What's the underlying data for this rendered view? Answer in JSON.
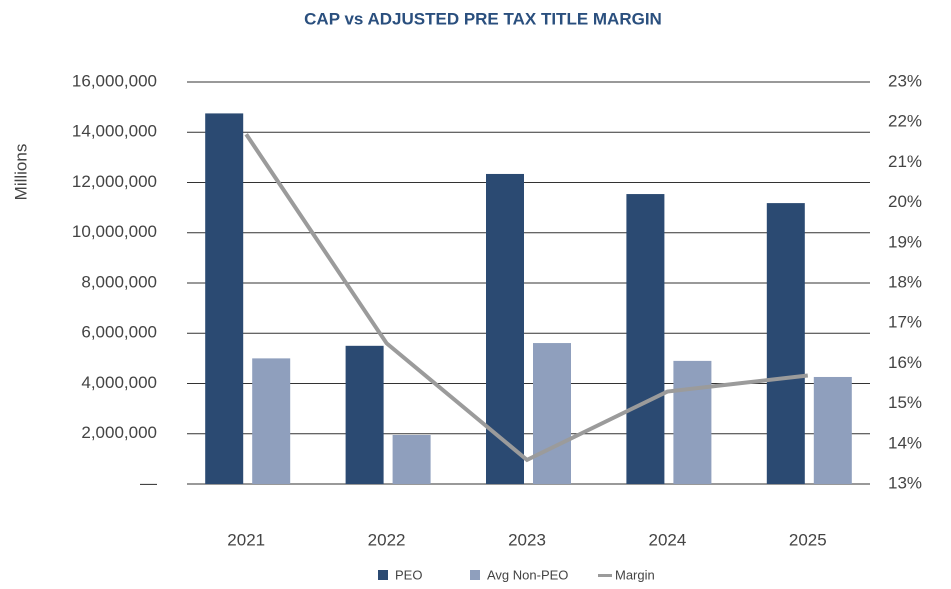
{
  "chart_data": {
    "type": "bar",
    "title": "CAP vs ADJUSTED PRE TAX TITLE MARGIN",
    "y_label": "Millions",
    "categories": [
      "2021",
      "2022",
      "2023",
      "2024",
      "2025"
    ],
    "series": [
      {
        "name": "PEO",
        "color": "#2b4a72",
        "values": [
          14750000,
          5500000,
          12340000,
          11540000,
          11180000
        ]
      },
      {
        "name": "Avg Non-PEO",
        "color": "#8f9fbd",
        "values": [
          5000000,
          1950000,
          5610000,
          4900000,
          4260000
        ]
      },
      {
        "name": "Margin",
        "color": "#9b9b9b",
        "type": "line",
        "axis": "y2",
        "values": [
          21.7,
          16.5,
          13.6,
          15.3,
          15.7
        ]
      }
    ],
    "ylim": [
      0,
      16000000
    ],
    "yticks": [
      {
        "value": 0,
        "label": "—"
      },
      {
        "value": 2000000,
        "label": "2,000,000"
      },
      {
        "value": 4000000,
        "label": "4,000,000"
      },
      {
        "value": 6000000,
        "label": "6,000,000"
      },
      {
        "value": 8000000,
        "label": "8,000,000"
      },
      {
        "value": 10000000,
        "label": "10,000,000"
      },
      {
        "value": 12000000,
        "label": "12,000,000"
      },
      {
        "value": 14000000,
        "label": "14,000,000"
      },
      {
        "value": 16000000,
        "label": "16,000,000"
      }
    ],
    "y2lim": [
      13,
      23
    ],
    "y2ticks": [
      {
        "value": 13,
        "label": "13%"
      },
      {
        "value": 14,
        "label": "14%"
      },
      {
        "value": 15,
        "label": "15%"
      },
      {
        "value": 16,
        "label": "16%"
      },
      {
        "value": 17,
        "label": "17%"
      },
      {
        "value": 18,
        "label": "18%"
      },
      {
        "value": 19,
        "label": "19%"
      },
      {
        "value": 20,
        "label": "20%"
      },
      {
        "value": 21,
        "label": "21%"
      },
      {
        "value": 22,
        "label": "22%"
      },
      {
        "value": 23,
        "label": "23%"
      }
    ],
    "grid": true,
    "legend": "bottom"
  }
}
